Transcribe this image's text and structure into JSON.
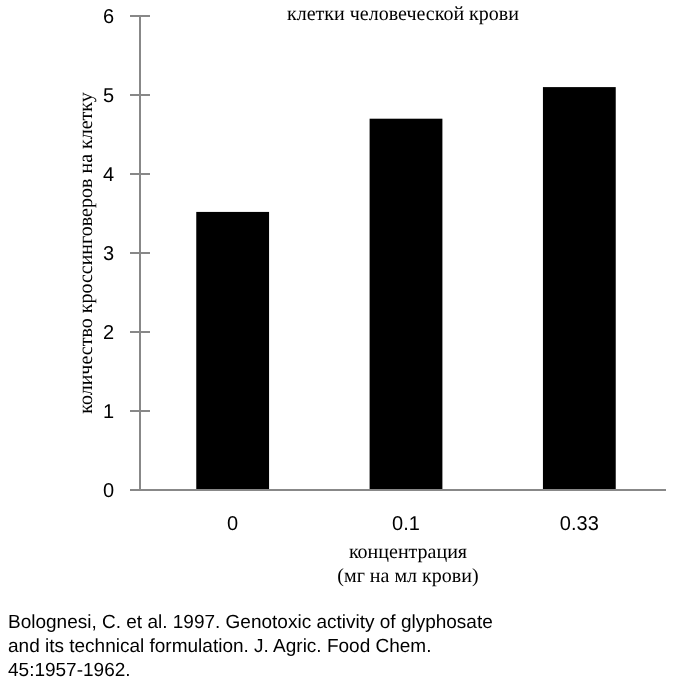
{
  "chart_data": {
    "type": "bar",
    "title": "клетки человеческой крови",
    "xlabel": "концентрация\n(мг на мл крови)",
    "ylabel": "количество кроссинговеров на клетку",
    "categories": [
      "0",
      "0.1",
      "0.33"
    ],
    "values": [
      3.52,
      4.7,
      5.1
    ],
    "color": "#000000",
    "ylim": [
      0,
      6
    ],
    "yticks": [
      0,
      1,
      2,
      3,
      4,
      5,
      6
    ],
    "grid": false,
    "annotations": [
      "Bolognesi, C. et al. 1997. Genotoxic activity of glyphosate and its technical formulation. J. Agric. Food Chem. 45:1957-1962."
    ]
  }
}
